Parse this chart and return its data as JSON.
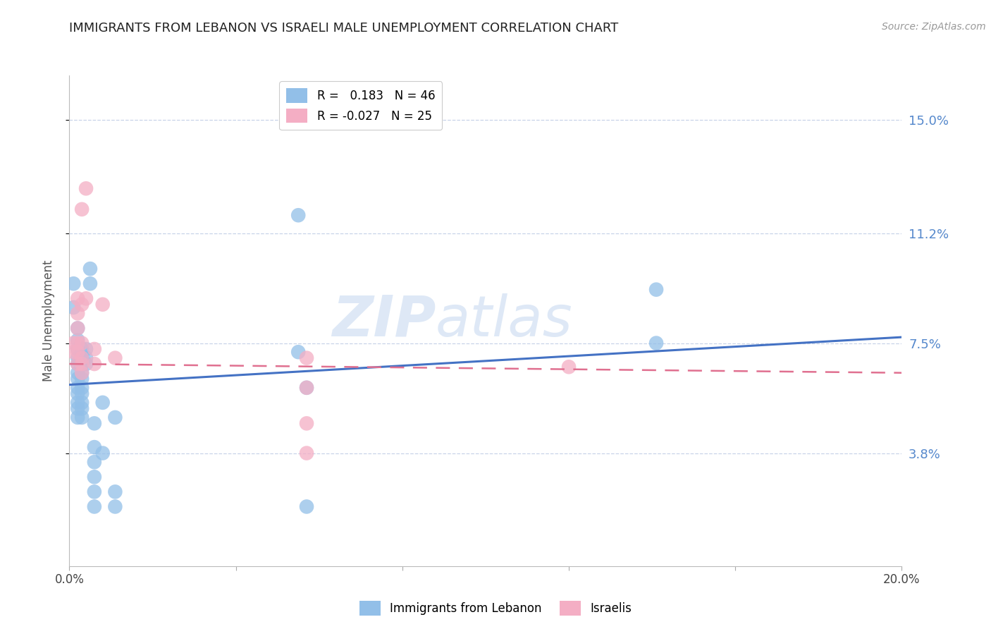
{
  "title": "IMMIGRANTS FROM LEBANON VS ISRAELI MALE UNEMPLOYMENT CORRELATION CHART",
  "source": "Source: ZipAtlas.com",
  "ylabel": "Male Unemployment",
  "xlim": [
    0.0,
    0.2
  ],
  "ylim": [
    0.0,
    0.165
  ],
  "yticks": [
    0.038,
    0.075,
    0.112,
    0.15
  ],
  "ytick_labels": [
    "3.8%",
    "7.5%",
    "11.2%",
    "15.0%"
  ],
  "xticks": [
    0.0,
    0.04,
    0.08,
    0.12,
    0.16,
    0.2
  ],
  "xtick_labels": [
    "0.0%",
    "",
    "",
    "",
    "",
    "20.0%"
  ],
  "watermark_zip": "ZIP",
  "watermark_atlas": "atlas",
  "legend_r1_label": "R =   0.183   N = 46",
  "legend_r2_label": "R = -0.027   N = 25",
  "color_blue": "#92bfe8",
  "color_pink": "#f4aec4",
  "line_blue": "#4472c4",
  "line_pink": "#e07090",
  "background": "#ffffff",
  "grid_color": "#c8d4e8",
  "title_color": "#222222",
  "axis_label_color": "#555555",
  "right_tick_color": "#5588cc",
  "blue_points": [
    [
      0.001,
      0.095
    ],
    [
      0.001,
      0.087
    ],
    [
      0.002,
      0.08
    ],
    [
      0.002,
      0.076
    ],
    [
      0.002,
      0.073
    ],
    [
      0.002,
      0.07
    ],
    [
      0.002,
      0.068
    ],
    [
      0.002,
      0.065
    ],
    [
      0.002,
      0.063
    ],
    [
      0.002,
      0.06
    ],
    [
      0.002,
      0.058
    ],
    [
      0.002,
      0.055
    ],
    [
      0.002,
      0.053
    ],
    [
      0.002,
      0.05
    ],
    [
      0.003,
      0.073
    ],
    [
      0.003,
      0.07
    ],
    [
      0.003,
      0.068
    ],
    [
      0.003,
      0.065
    ],
    [
      0.003,
      0.063
    ],
    [
      0.003,
      0.06
    ],
    [
      0.003,
      0.058
    ],
    [
      0.003,
      0.055
    ],
    [
      0.003,
      0.053
    ],
    [
      0.003,
      0.05
    ],
    [
      0.004,
      0.073
    ],
    [
      0.004,
      0.07
    ],
    [
      0.004,
      0.068
    ],
    [
      0.005,
      0.1
    ],
    [
      0.005,
      0.095
    ],
    [
      0.006,
      0.048
    ],
    [
      0.006,
      0.04
    ],
    [
      0.006,
      0.035
    ],
    [
      0.006,
      0.03
    ],
    [
      0.006,
      0.025
    ],
    [
      0.006,
      0.02
    ],
    [
      0.008,
      0.055
    ],
    [
      0.008,
      0.038
    ],
    [
      0.011,
      0.05
    ],
    [
      0.011,
      0.025
    ],
    [
      0.011,
      0.02
    ],
    [
      0.055,
      0.118
    ],
    [
      0.055,
      0.072
    ],
    [
      0.057,
      0.06
    ],
    [
      0.057,
      0.02
    ],
    [
      0.141,
      0.075
    ],
    [
      0.141,
      0.093
    ]
  ],
  "pink_points": [
    [
      0.001,
      0.075
    ],
    [
      0.001,
      0.072
    ],
    [
      0.002,
      0.09
    ],
    [
      0.002,
      0.085
    ],
    [
      0.002,
      0.08
    ],
    [
      0.002,
      0.075
    ],
    [
      0.002,
      0.072
    ],
    [
      0.002,
      0.068
    ],
    [
      0.003,
      0.12
    ],
    [
      0.003,
      0.088
    ],
    [
      0.003,
      0.075
    ],
    [
      0.003,
      0.07
    ],
    [
      0.003,
      0.068
    ],
    [
      0.003,
      0.065
    ],
    [
      0.004,
      0.127
    ],
    [
      0.004,
      0.09
    ],
    [
      0.006,
      0.073
    ],
    [
      0.006,
      0.068
    ],
    [
      0.008,
      0.088
    ],
    [
      0.011,
      0.07
    ],
    [
      0.057,
      0.06
    ],
    [
      0.057,
      0.048
    ],
    [
      0.057,
      0.07
    ],
    [
      0.057,
      0.038
    ],
    [
      0.12,
      0.067
    ]
  ],
  "blue_line": [
    [
      0.0,
      0.061
    ],
    [
      0.2,
      0.077
    ]
  ],
  "pink_line": [
    [
      0.0,
      0.068
    ],
    [
      0.2,
      0.065
    ]
  ]
}
